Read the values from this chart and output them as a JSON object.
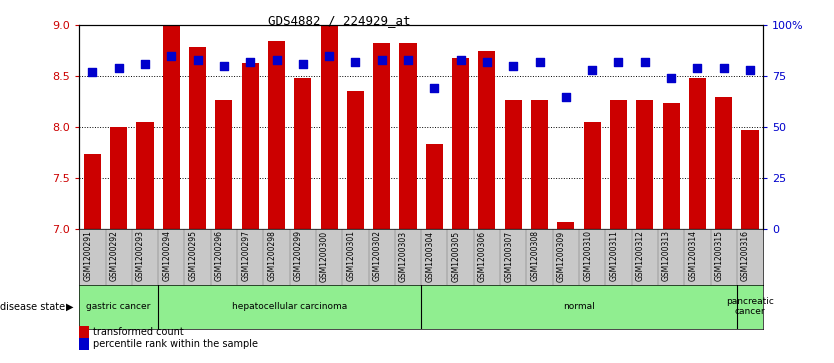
{
  "title": "GDS4882 / 224929_at",
  "samples": [
    "GSM1200291",
    "GSM1200292",
    "GSM1200293",
    "GSM1200294",
    "GSM1200295",
    "GSM1200296",
    "GSM1200297",
    "GSM1200298",
    "GSM1200299",
    "GSM1200300",
    "GSM1200301",
    "GSM1200302",
    "GSM1200303",
    "GSM1200304",
    "GSM1200305",
    "GSM1200306",
    "GSM1200307",
    "GSM1200308",
    "GSM1200309",
    "GSM1200310",
    "GSM1200311",
    "GSM1200312",
    "GSM1200313",
    "GSM1200314",
    "GSM1200315",
    "GSM1200316"
  ],
  "transformed_count": [
    7.73,
    8.0,
    8.05,
    8.99,
    8.79,
    8.27,
    8.63,
    8.85,
    8.48,
    9.0,
    8.35,
    8.83,
    8.83,
    7.83,
    8.68,
    8.75,
    8.27,
    8.27,
    7.07,
    8.05,
    8.27,
    8.27,
    8.24,
    8.48,
    8.3,
    7.97
  ],
  "percentile_rank": [
    77,
    79,
    81,
    85,
    83,
    80,
    82,
    83,
    81,
    85,
    82,
    83,
    83,
    69,
    83,
    82,
    80,
    82,
    65,
    78,
    82,
    82,
    74,
    79,
    79,
    78
  ],
  "ylim_left": [
    7,
    9
  ],
  "ylim_right": [
    0,
    100
  ],
  "yticks_left": [
    7,
    7.5,
    8,
    8.5,
    9
  ],
  "yticks_right": [
    0,
    25,
    50,
    75,
    100
  ],
  "group_boundaries": [
    [
      0,
      3,
      "gastric cancer"
    ],
    [
      3,
      13,
      "hepatocellular carcinoma"
    ],
    [
      13,
      25,
      "normal"
    ],
    [
      25,
      26,
      "pancreatic\ncancer"
    ]
  ],
  "bar_color": "#CC0000",
  "dot_color": "#0000CC",
  "green_color": "#90EE90",
  "axis_color_left": "#CC0000",
  "axis_color_right": "#0000CC",
  "xtick_bg": "#C8C8C8",
  "legend_bar": "transformed count",
  "legend_dot": "percentile rank within the sample",
  "label_disease_state": "disease state"
}
